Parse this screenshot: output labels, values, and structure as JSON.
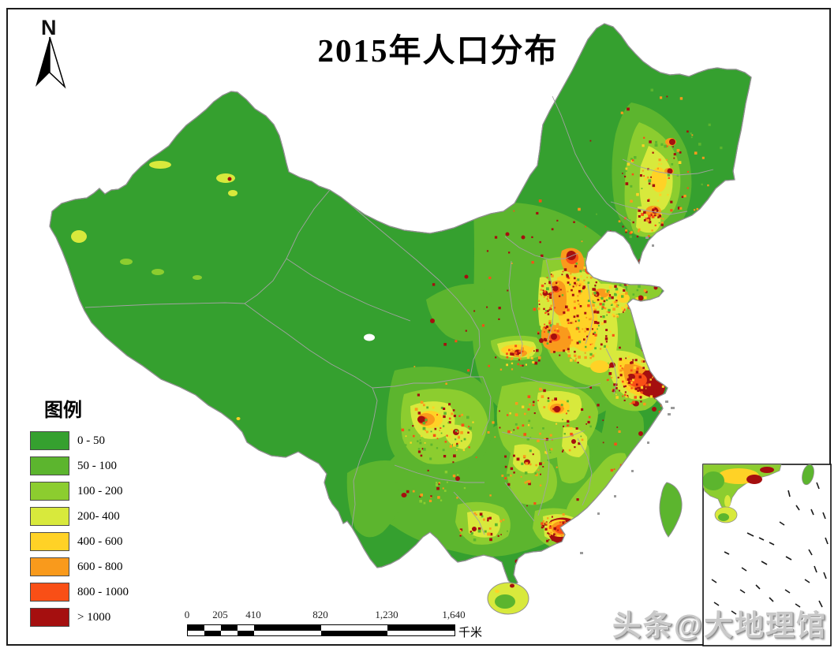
{
  "title": "2015年人口分布",
  "north": {
    "label": "N"
  },
  "legend": {
    "title": "图例",
    "items": [
      {
        "label": "0 - 50",
        "color": "#35a02f"
      },
      {
        "label": "50 - 100",
        "color": "#5cb52e"
      },
      {
        "label": "100 - 200",
        "color": "#8ccd2f"
      },
      {
        "label": "200- 400",
        "color": "#d8e93c"
      },
      {
        "label": "400 - 600",
        "color": "#ffd226"
      },
      {
        "label": "600 - 800",
        "color": "#f99a1c"
      },
      {
        "label": "800 - 1000",
        "color": "#f94f16"
      },
      {
        "label": "> 1000",
        "color": "#a50f0f"
      }
    ]
  },
  "scale_bar": {
    "ticks": [
      "0",
      "205",
      "410",
      "820",
      "1,230",
      "1,640"
    ],
    "unit": "千米"
  },
  "watermark": "头条@大地理馆",
  "map": {
    "coast_color": "#8f8f8f",
    "province_color": "#a2a2a2",
    "sea_color": "#ffffff",
    "inset_border_color": "#111111"
  }
}
